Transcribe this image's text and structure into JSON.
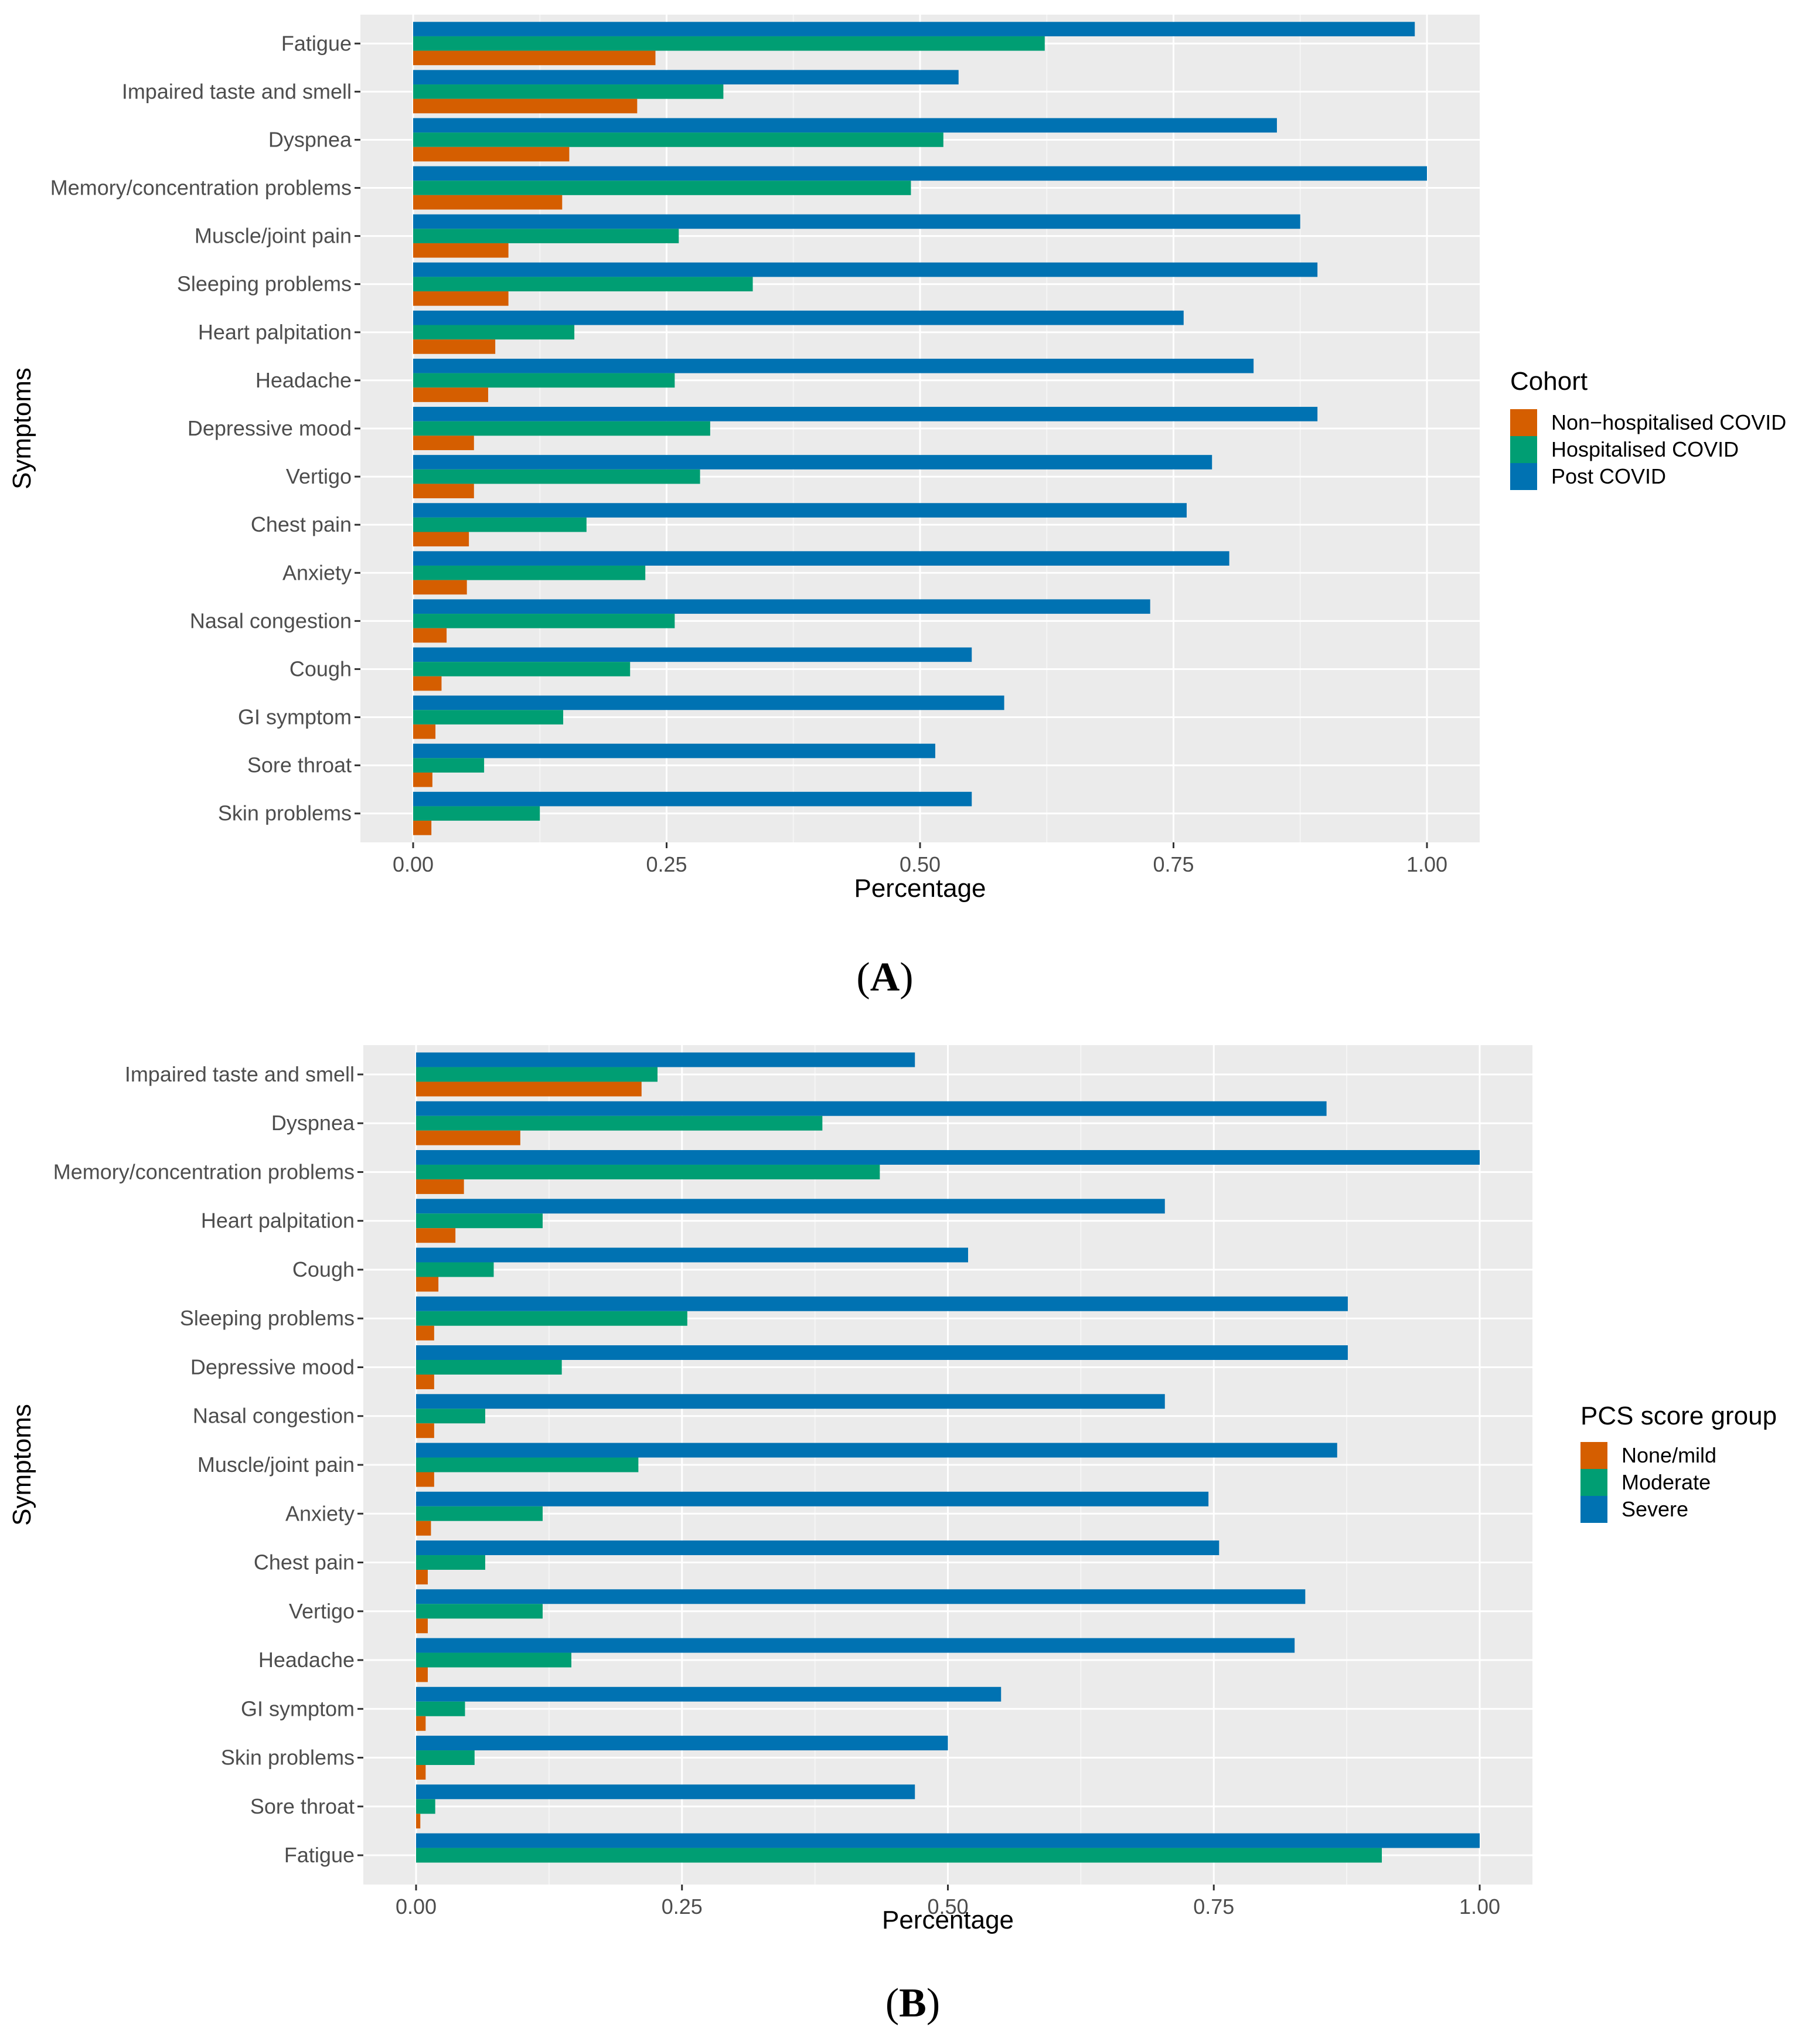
{
  "chart_data": [
    {
      "type": "bar",
      "orientation": "horizontal",
      "panel_label": "A",
      "xlabel": "Percentage",
      "ylabel": "Symptoms",
      "xlim": [
        0,
        1.05
      ],
      "xticks": [
        "0.00",
        "0.25",
        "0.50",
        "0.75",
        "1.00"
      ],
      "grid": true,
      "legend": {
        "title": "Cohort",
        "position": "right"
      },
      "categories": [
        "Fatigue",
        "Impaired taste and smell",
        "Dyspnea",
        "Memory/concentration problems",
        "Muscle/joint pain",
        "Sleeping problems",
        "Heart palpitation",
        "Headache",
        "Depressive mood",
        "Vertigo",
        "Chest pain",
        "Anxiety",
        "Nasal congestion",
        "Cough",
        "GI symptom",
        "Sore throat",
        "Skin problems"
      ],
      "series": [
        {
          "name": "Post COVID",
          "color": "#0072B2",
          "values": [
            0.988,
            0.538,
            0.852,
            1.0,
            0.875,
            0.892,
            0.76,
            0.829,
            0.892,
            0.788,
            0.763,
            0.805,
            0.727,
            0.551,
            0.583,
            0.515,
            0.551
          ]
        },
        {
          "name": "Hospitalised COVID",
          "color": "#009E73",
          "values": [
            0.623,
            0.306,
            0.523,
            0.491,
            0.262,
            0.335,
            0.159,
            0.258,
            0.293,
            0.283,
            0.171,
            0.229,
            0.258,
            0.214,
            0.148,
            0.07,
            0.125
          ]
        },
        {
          "name": "Non−hospitalised COVID",
          "color": "#D55E00",
          "values": [
            0.239,
            0.221,
            0.154,
            0.147,
            0.094,
            0.094,
            0.081,
            0.074,
            0.06,
            0.06,
            0.055,
            0.053,
            0.033,
            0.028,
            0.022,
            0.019,
            0.018
          ]
        }
      ],
      "legend_order": [
        "Non−hospitalised COVID",
        "Hospitalised COVID",
        "Post COVID"
      ]
    },
    {
      "type": "bar",
      "orientation": "horizontal",
      "panel_label": "B",
      "xlabel": "Percentage",
      "ylabel": "Symptoms",
      "xlim": [
        0,
        1.05
      ],
      "xticks": [
        "0.00",
        "0.25",
        "0.50",
        "0.75",
        "1.00"
      ],
      "grid": true,
      "legend": {
        "title": "PCS score group",
        "position": "right"
      },
      "categories": [
        "Impaired taste and smell",
        "Dyspnea",
        "Memory/concentration problems",
        "Heart palpitation",
        "Cough",
        "Sleeping problems",
        "Depressive mood",
        "Nasal congestion",
        "Muscle/joint pain",
        "Anxiety",
        "Chest pain",
        "Vertigo",
        "Headache",
        "GI symptom",
        "Skin problems",
        "Sore throat",
        "Fatigue"
      ],
      "series": [
        {
          "name": "Severe",
          "color": "#0072B2",
          "values": [
            0.469,
            0.856,
            1.0,
            0.704,
            0.519,
            0.876,
            0.876,
            0.704,
            0.866,
            0.745,
            0.755,
            0.836,
            0.826,
            0.55,
            0.5,
            0.469,
            1.0
          ]
        },
        {
          "name": "Moderate",
          "color": "#009E73",
          "values": [
            0.227,
            0.382,
            0.436,
            0.119,
            0.073,
            0.255,
            0.137,
            0.065,
            0.209,
            0.119,
            0.065,
            0.119,
            0.146,
            0.046,
            0.055,
            0.018,
            0.908
          ]
        },
        {
          "name": "None/mild",
          "color": "#D55E00",
          "values": [
            0.212,
            0.098,
            0.045,
            0.037,
            0.021,
            0.017,
            0.017,
            0.017,
            0.017,
            0.014,
            0.011,
            0.011,
            0.011,
            0.009,
            0.009,
            0.004,
            0.0
          ]
        }
      ],
      "legend_order": [
        "None/mild",
        "Moderate",
        "Severe"
      ]
    }
  ]
}
